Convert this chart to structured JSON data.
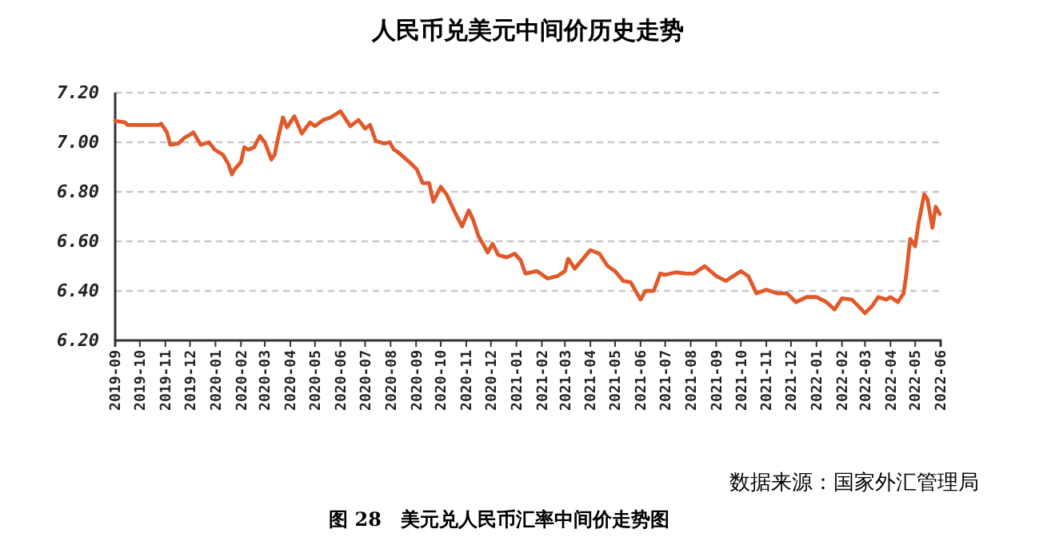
{
  "chart_data": {
    "type": "line",
    "title": "人民币兑美元中间价历史走势",
    "annotations": [
      "数据来源：国家外汇管理局",
      "图 28　美元兑人民币汇率中间价走势图"
    ],
    "x": [
      "2019-09-01",
      "2019-09-13",
      "2019-09-16",
      "2019-10-24",
      "2019-10-27",
      "2019-11-03",
      "2019-11-07",
      "2019-11-17",
      "2019-11-25",
      "2019-12-01",
      "2019-12-05",
      "2019-12-14",
      "2019-12-24",
      "2019-12-31",
      "2020-01-10",
      "2020-01-17",
      "2020-01-21",
      "2020-01-24",
      "2020-02-01",
      "2020-02-05",
      "2020-02-10",
      "2020-02-17",
      "2020-02-24",
      "2020-03-01",
      "2020-03-09",
      "2020-03-13",
      "2020-03-17",
      "2020-03-23",
      "2020-03-28",
      "2020-04-06",
      "2020-04-15",
      "2020-04-25",
      "2020-05-01",
      "2020-05-11",
      "2020-05-20",
      "2020-06-01",
      "2020-06-05",
      "2020-06-13",
      "2020-06-23",
      "2020-07-01",
      "2020-07-07",
      "2020-07-14",
      "2020-07-24",
      "2020-07-31",
      "2020-08-05",
      "2020-08-10",
      "2020-08-17",
      "2020-08-27",
      "2020-09-02",
      "2020-09-09",
      "2020-09-17",
      "2020-09-22",
      "2020-10-01",
      "2020-10-08",
      "2020-10-15",
      "2020-10-20",
      "2020-10-27",
      "2020-11-04",
      "2020-11-09",
      "2020-11-16",
      "2020-11-23",
      "2020-11-27",
      "2020-12-03",
      "2020-12-10",
      "2020-12-20",
      "2020-12-30",
      "2021-01-06",
      "2021-01-12",
      "2021-01-26",
      "2021-02-08",
      "2021-02-20",
      "2021-03-01",
      "2021-03-05",
      "2021-03-13",
      "2021-04-01",
      "2021-04-12",
      "2021-04-22",
      "2021-05-01",
      "2021-05-11",
      "2021-05-20",
      "2021-06-01",
      "2021-06-07",
      "2021-06-17",
      "2021-06-25",
      "2021-07-01",
      "2021-07-14",
      "2021-07-26",
      "2021-08-05",
      "2021-08-18",
      "2021-09-01",
      "2021-09-13",
      "2021-10-01",
      "2021-10-10",
      "2021-10-20",
      "2021-11-01",
      "2021-11-14",
      "2021-11-26",
      "2021-12-07",
      "2021-12-20",
      "2022-01-01",
      "2022-01-13",
      "2022-01-23",
      "2022-02-01",
      "2022-02-13",
      "2022-02-22",
      "2022-03-01",
      "2022-03-10",
      "2022-03-17",
      "2022-03-27",
      "2022-04-01",
      "2022-04-10",
      "2022-04-17",
      "2022-04-20",
      "2022-04-25",
      "2022-05-01",
      "2022-05-05",
      "2022-05-12",
      "2022-05-16",
      "2022-05-22",
      "2022-05-26",
      "2022-05-31"
    ],
    "series": [
      {
        "color": "#e0592a",
        "values": [
          7.086,
          7.08,
          7.07,
          7.07,
          7.075,
          7.04,
          6.99,
          6.995,
          7.02,
          7.03,
          7.04,
          6.99,
          7.0,
          6.97,
          6.95,
          6.91,
          6.87,
          6.89,
          6.92,
          6.98,
          6.97,
          6.98,
          7.025,
          7.0,
          6.93,
          6.95,
          7.015,
          7.1,
          7.06,
          7.105,
          7.035,
          7.08,
          7.065,
          7.09,
          7.1,
          7.125,
          7.105,
          7.065,
          7.09,
          7.055,
          7.07,
          7.005,
          6.995,
          7.0,
          6.97,
          6.96,
          6.94,
          6.91,
          6.89,
          6.835,
          6.835,
          6.76,
          6.82,
          6.79,
          6.74,
          6.705,
          6.66,
          6.725,
          6.69,
          6.62,
          6.58,
          6.555,
          6.59,
          6.545,
          6.535,
          6.55,
          6.525,
          6.47,
          6.48,
          6.45,
          6.46,
          6.48,
          6.53,
          6.49,
          6.565,
          6.55,
          6.5,
          6.48,
          6.44,
          6.435,
          6.365,
          6.4,
          6.4,
          6.47,
          6.465,
          6.475,
          6.47,
          6.47,
          6.5,
          6.46,
          6.44,
          6.48,
          6.46,
          6.39,
          6.405,
          6.39,
          6.39,
          6.355,
          6.375,
          6.375,
          6.355,
          6.325,
          6.37,
          6.365,
          6.335,
          6.31,
          6.34,
          6.375,
          6.365,
          6.375,
          6.355,
          6.39,
          6.46,
          6.61,
          6.58,
          6.67,
          6.79,
          6.77,
          6.655,
          6.74,
          6.71
        ]
      }
    ],
    "xlim": [
      "2019-09-01",
      "2022-06-01"
    ],
    "xticks": [
      "2019-09",
      "2019-10",
      "2019-11",
      "2019-12",
      "2020-01",
      "2020-02",
      "2020-03",
      "2020-04",
      "2020-05",
      "2020-06",
      "2020-07",
      "2020-08",
      "2020-09",
      "2020-10",
      "2020-11",
      "2020-12",
      "2021-01",
      "2021-02",
      "2021-03",
      "2021-04",
      "2021-05",
      "2021-06",
      "2021-07",
      "2021-08",
      "2021-09",
      "2021-10",
      "2021-11",
      "2021-12",
      "2022-01",
      "2022-02",
      "2022-03",
      "2022-04",
      "2022-05",
      "2022-06"
    ],
    "ylim": [
      6.2,
      7.2
    ],
    "yticks": [
      {
        "value": 6.2,
        "label": "6.20"
      },
      {
        "value": 6.4,
        "label": "6.40"
      },
      {
        "value": 6.6,
        "label": "6.60"
      },
      {
        "value": 6.8,
        "label": "6.80"
      },
      {
        "value": 7.0,
        "label": "7.00"
      },
      {
        "value": 7.2,
        "label": "7.20"
      }
    ],
    "grid": "y",
    "marker": "none",
    "line_style": "solid"
  }
}
